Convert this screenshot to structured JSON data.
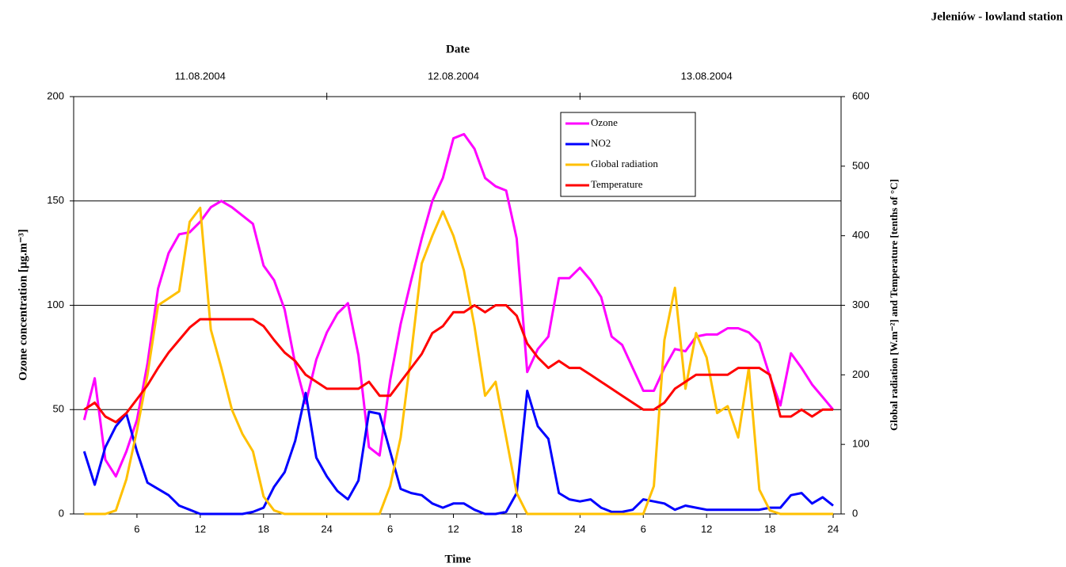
{
  "chart_data": {
    "type": "line",
    "title": "Jeleniów - lowland station",
    "xlabel": "Time",
    "ylabel": "Ozone concentration [µg.m⁻³]",
    "y2label": "Global radiation [W.m⁻²] and Temperature [tenths of °C]",
    "top_axis": {
      "label": "Date",
      "ticks": [
        {
          "value": 12,
          "label": "11.08.2004"
        },
        {
          "value": 36,
          "label": "12.08.2004"
        },
        {
          "value": 60,
          "label": "13.08.2004"
        }
      ],
      "separators": [
        24,
        48
      ]
    },
    "x": [
      1,
      2,
      3,
      4,
      5,
      6,
      7,
      8,
      9,
      10,
      11,
      12,
      13,
      14,
      15,
      16,
      17,
      18,
      19,
      20,
      21,
      22,
      23,
      24,
      25,
      26,
      27,
      28,
      29,
      30,
      31,
      32,
      33,
      34,
      35,
      36,
      37,
      38,
      39,
      40,
      41,
      42,
      43,
      44,
      45,
      46,
      47,
      48,
      49,
      50,
      51,
      52,
      53,
      54,
      55,
      56,
      57,
      58,
      59,
      60,
      61,
      62,
      63,
      64,
      65,
      66,
      67,
      68,
      69,
      70,
      71,
      72
    ],
    "xlim": [
      0,
      72.75
    ],
    "xticks": [
      6,
      12,
      18,
      24,
      {
        "value": 30,
        "label": "6"
      },
      {
        "value": 36,
        "label": "12"
      },
      {
        "value": 42,
        "label": "18"
      },
      {
        "value": 48,
        "label": "24"
      },
      {
        "value": 54,
        "label": "6"
      },
      {
        "value": 60,
        "label": "12"
      },
      {
        "value": 66,
        "label": "18"
      },
      {
        "value": 72,
        "label": "24"
      }
    ],
    "ylim": [
      0,
      200
    ],
    "yticks": [
      0,
      50,
      100,
      150,
      200
    ],
    "y2lim": [
      0,
      600
    ],
    "y2ticks": [
      0,
      100,
      200,
      300,
      400,
      500,
      600
    ],
    "grid": true,
    "legend": "top-center",
    "series": [
      {
        "name": "Ozone",
        "color": "#ff00ff",
        "values": [
          45,
          65,
          26,
          18,
          30,
          45,
          72,
          108,
          125,
          134,
          135,
          140,
          147,
          150,
          147,
          143,
          139,
          119,
          112,
          98,
          72,
          53,
          74,
          87,
          96,
          101,
          76,
          32,
          28,
          64,
          91,
          112,
          132,
          150,
          161,
          180,
          182,
          175,
          161,
          157,
          155,
          132,
          68,
          79,
          85,
          113,
          113,
          118,
          112,
          104,
          85,
          81,
          70,
          59,
          59,
          70,
          79,
          78,
          85,
          86,
          86,
          89,
          89,
          87,
          82,
          66,
          52,
          77,
          70,
          62,
          56,
          50
        ]
      },
      {
        "name": "NO2",
        "color": "#0000ff",
        "values": [
          30,
          14,
          32,
          42,
          48,
          30,
          15,
          12,
          9,
          4,
          2,
          0,
          0,
          0,
          0,
          0,
          1,
          3,
          13,
          20,
          35,
          58,
          27,
          18,
          11,
          7,
          16,
          49,
          48,
          30,
          12,
          10,
          9,
          5,
          3,
          5,
          5,
          2,
          0,
          0,
          1,
          10,
          59,
          42,
          36,
          10,
          7,
          6,
          7,
          3,
          1,
          1,
          2,
          7,
          6,
          5,
          2,
          4,
          3,
          2,
          2,
          2,
          2,
          2,
          2,
          3,
          3,
          9,
          10,
          5,
          8,
          4
        ]
      },
      {
        "name": "Global radiation",
        "color": "#ffc000",
        "axis": "y2",
        "values": [
          0,
          0,
          0,
          5,
          50,
          120,
          200,
          300,
          310,
          320,
          420,
          440,
          265,
          210,
          150,
          115,
          90,
          25,
          5,
          0,
          0,
          0,
          0,
          0,
          0,
          0,
          0,
          0,
          0,
          40,
          110,
          230,
          360,
          400,
          435,
          400,
          350,
          270,
          170,
          190,
          110,
          30,
          0,
          0,
          0,
          0,
          0,
          0,
          0,
          0,
          0,
          0,
          0,
          0,
          40,
          250,
          325,
          180,
          260,
          225,
          145,
          155,
          110,
          210,
          35,
          5,
          0,
          0,
          0,
          0,
          0,
          0
        ]
      },
      {
        "name": "Temperature",
        "color": "#ff0000",
        "axis": "y2",
        "values": [
          150,
          160,
          140,
          132,
          145,
          165,
          185,
          210,
          232,
          250,
          268,
          280,
          280,
          280,
          280,
          280,
          280,
          270,
          250,
          232,
          220,
          200,
          190,
          180,
          180,
          180,
          180,
          190,
          170,
          170,
          190,
          210,
          230,
          260,
          270,
          290,
          290,
          300,
          290,
          300,
          300,
          285,
          245,
          225,
          210,
          220,
          210,
          210,
          200,
          190,
          180,
          170,
          160,
          150,
          150,
          160,
          180,
          190,
          200,
          200,
          200,
          200,
          210,
          210,
          210,
          200,
          140,
          140,
          150,
          140,
          150,
          150
        ]
      }
    ]
  }
}
